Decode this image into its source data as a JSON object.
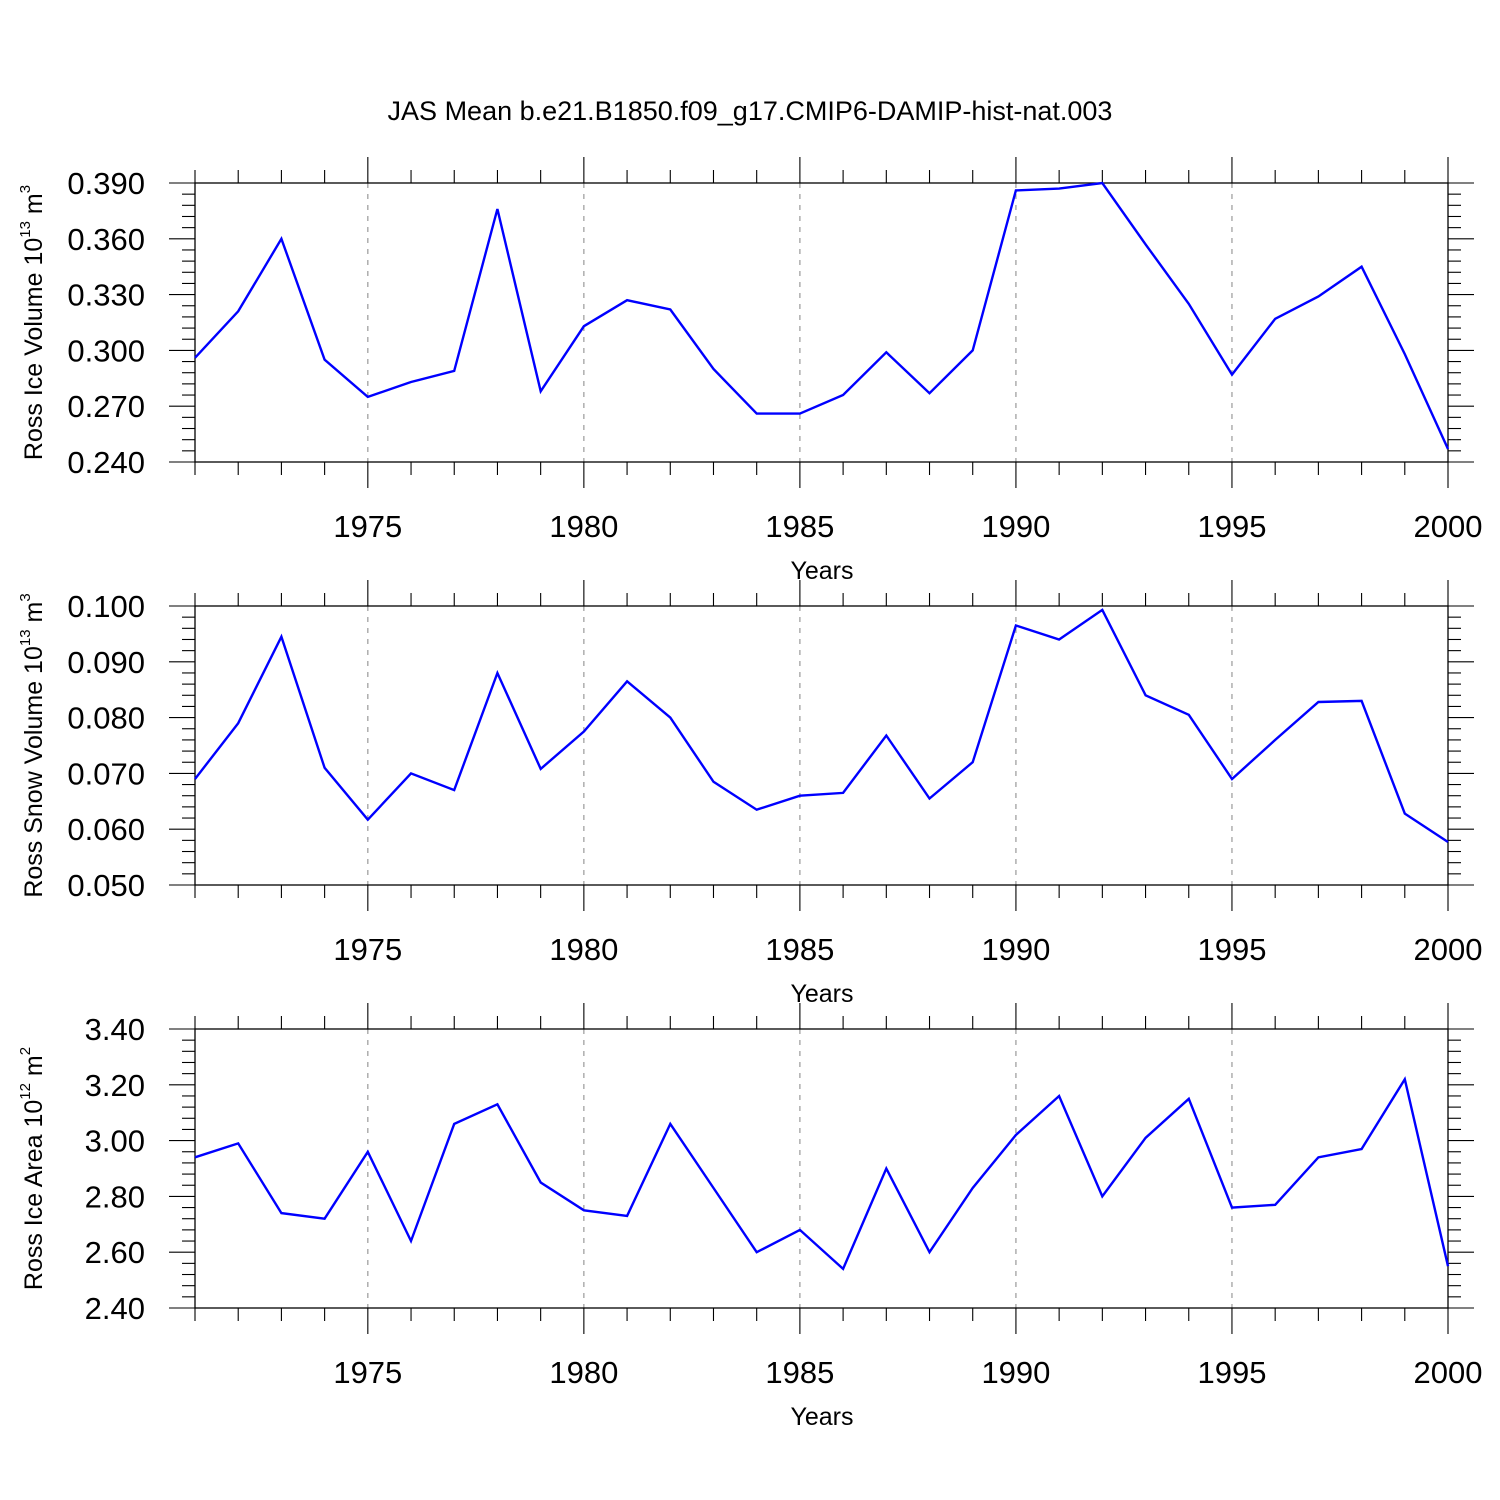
{
  "figure": {
    "title": "JAS Mean b.e21.B1850.f09_g17.CMIP6-DAMIP-hist-nat.003"
  },
  "chart_data": [
    {
      "type": "line",
      "xlabel": "Years",
      "ylabel_main": "Ross Ice Volume 10",
      "ylabel_exp": "13",
      "ylabel_unit": " m",
      "ylabel_unit_exp": "3",
      "xlim": [
        1971,
        2000
      ],
      "ylim": [
        0.24,
        0.39
      ],
      "x_ticks": [
        "1975",
        "1980",
        "1985",
        "1990",
        "1995",
        "2000"
      ],
      "y_ticks": [
        "0.240",
        "0.270",
        "0.300",
        "0.330",
        "0.360",
        "0.390"
      ],
      "grid": "dashed vertical at major x ticks",
      "series": [
        {
          "color": "#0000ff",
          "x": [
            1971,
            1972,
            1973,
            1974,
            1975,
            1976,
            1977,
            1978,
            1979,
            1980,
            1981,
            1982,
            1983,
            1984,
            1985,
            1986,
            1987,
            1988,
            1989,
            1990,
            1991,
            1992,
            1993,
            1994,
            1995,
            1996,
            1997,
            1998,
            1999,
            2000
          ],
          "values": [
            0.296,
            0.321,
            0.36,
            0.295,
            0.275,
            0.283,
            0.289,
            0.376,
            0.278,
            0.313,
            0.327,
            0.322,
            0.29,
            0.266,
            0.266,
            0.276,
            0.299,
            0.277,
            0.3,
            0.386,
            0.387,
            0.39,
            0.357,
            0.325,
            0.287,
            0.317,
            0.329,
            0.345,
            0.298,
            0.247
          ]
        }
      ]
    },
    {
      "type": "line",
      "xlabel": "Years",
      "ylabel_main": "Ross Snow Volume 10",
      "ylabel_exp": "13",
      "ylabel_unit": " m",
      "ylabel_unit_exp": "3",
      "xlim": [
        1971,
        2000
      ],
      "ylim": [
        0.05,
        0.1
      ],
      "x_ticks": [
        "1975",
        "1980",
        "1985",
        "1990",
        "1995",
        "2000"
      ],
      "y_ticks": [
        "0.050",
        "0.060",
        "0.070",
        "0.080",
        "0.090",
        "0.100"
      ],
      "grid": "dashed vertical at major x ticks",
      "series": [
        {
          "color": "#0000ff",
          "x": [
            1971,
            1972,
            1973,
            1974,
            1975,
            1976,
            1977,
            1978,
            1979,
            1980,
            1981,
            1982,
            1983,
            1984,
            1985,
            1986,
            1987,
            1988,
            1989,
            1990,
            1991,
            1992,
            1993,
            1994,
            1995,
            1996,
            1997,
            1998,
            1999,
            2000
          ],
          "values": [
            0.069,
            0.079,
            0.0945,
            0.071,
            0.0617,
            0.07,
            0.067,
            0.088,
            0.0708,
            0.0775,
            0.0865,
            0.08,
            0.0685,
            0.0635,
            0.066,
            0.0665,
            0.0768,
            0.0655,
            0.072,
            0.0965,
            0.094,
            0.0993,
            0.084,
            0.0805,
            0.069,
            0.076,
            0.0828,
            0.083,
            0.0628,
            0.0577
          ]
        }
      ]
    },
    {
      "type": "line",
      "xlabel": "Years",
      "ylabel_main": "Ross Ice Area 10",
      "ylabel_exp": "12",
      "ylabel_unit": " m",
      "ylabel_unit_exp": "2",
      "xlim": [
        1971,
        2000
      ],
      "ylim": [
        2.4,
        3.4
      ],
      "x_ticks": [
        "1975",
        "1980",
        "1985",
        "1990",
        "1995",
        "2000"
      ],
      "y_ticks": [
        "2.40",
        "2.60",
        "2.80",
        "3.00",
        "3.20",
        "3.40"
      ],
      "grid": "dashed vertical at major x ticks",
      "series": [
        {
          "color": "#0000ff",
          "x": [
            1971,
            1972,
            1973,
            1974,
            1975,
            1976,
            1977,
            1978,
            1979,
            1980,
            1981,
            1982,
            1983,
            1984,
            1985,
            1986,
            1987,
            1988,
            1989,
            1990,
            1991,
            1992,
            1993,
            1994,
            1995,
            1996,
            1997,
            1998,
            1999,
            2000
          ],
          "values": [
            2.94,
            2.99,
            2.74,
            2.72,
            2.96,
            2.64,
            3.06,
            3.13,
            2.85,
            2.75,
            2.73,
            3.06,
            2.83,
            2.6,
            2.68,
            2.54,
            2.9,
            2.6,
            2.83,
            3.02,
            3.16,
            2.8,
            3.01,
            3.15,
            2.76,
            2.77,
            2.94,
            2.97,
            3.22,
            2.55
          ]
        }
      ]
    }
  ]
}
